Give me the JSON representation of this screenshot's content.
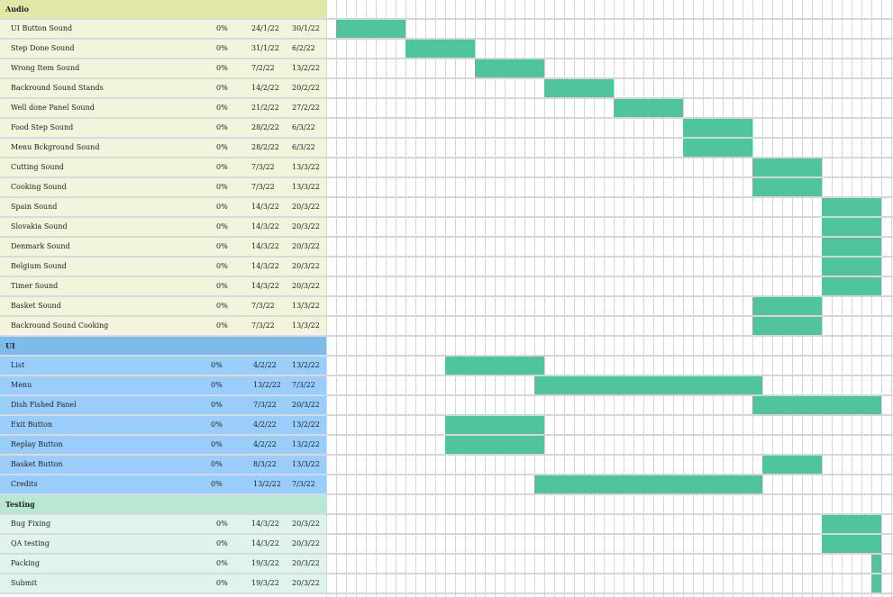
{
  "colors": {
    "audio_header": "#e1e8a6",
    "audio_row": "#f2f4dc",
    "ui_header": "#7dbcea",
    "ui_row": "#99cdfb",
    "testing_header": "#b8e8d4",
    "testing_row": "#dff4ec",
    "bar": "#50c49d",
    "grid_line": "#d6d6d6"
  },
  "groups": [
    {
      "key": "audio",
      "title": "Audio",
      "tasks": [
        {
          "name": "UI Button Sound",
          "progress": "0%",
          "start": "24/1/22",
          "end": "30/1/22",
          "bar_start": 1,
          "bar_end": 8
        },
        {
          "name": "Step Done Sound",
          "progress": "0%",
          "start": "31/1/22",
          "end": "6/2/22",
          "bar_start": 8,
          "bar_end": 15
        },
        {
          "name": "Wrong Item Sound",
          "progress": "0%",
          "start": "7/2/22",
          "end": "13/2/22",
          "bar_start": 15,
          "bar_end": 22
        },
        {
          "name": "Backround Sound Stands",
          "progress": "0%",
          "start": "14/2/22",
          "end": "20/2/22",
          "bar_start": 22,
          "bar_end": 29
        },
        {
          "name": "Well done Panel Sound",
          "progress": "0%",
          "start": "21/2/22",
          "end": "27/2/22",
          "bar_start": 29,
          "bar_end": 36
        },
        {
          "name": "Food Step Sound",
          "progress": "0%",
          "start": "28/2/22",
          "end": "6/3/22",
          "bar_start": 36,
          "bar_end": 43
        },
        {
          "name": "Menu Bckground Sound",
          "progress": "0%",
          "start": "28/2/22",
          "end": "6/3/22",
          "bar_start": 36,
          "bar_end": 43
        },
        {
          "name": "Cutting Sound",
          "progress": "0%",
          "start": "7/3/22",
          "end": "13/3/22",
          "bar_start": 43,
          "bar_end": 50
        },
        {
          "name": "Cooking Sound",
          "progress": "0%",
          "start": "7/3/22",
          "end": "13/3/22",
          "bar_start": 43,
          "bar_end": 50
        },
        {
          "name": "Spain Sound",
          "progress": "0%",
          "start": "14/3/22",
          "end": "20/3/22",
          "bar_start": 50,
          "bar_end": 56
        },
        {
          "name": "Slovakia Sound",
          "progress": "0%",
          "start": "14/3/22",
          "end": "20/3/22",
          "bar_start": 50,
          "bar_end": 56
        },
        {
          "name": "Denmark Sound",
          "progress": "0%",
          "start": "14/3/22",
          "end": "20/3/22",
          "bar_start": 50,
          "bar_end": 56
        },
        {
          "name": "Belgium Sound",
          "progress": "0%",
          "start": "14/3/22",
          "end": "20/3/22",
          "bar_start": 50,
          "bar_end": 56
        },
        {
          "name": "Timer Sound",
          "progress": "0%",
          "start": "14/3/22",
          "end": "20/3/22",
          "bar_start": 50,
          "bar_end": 56
        },
        {
          "name": "Basket Sound",
          "progress": "0%",
          "start": "7/3/22",
          "end": "13/3/22",
          "bar_start": 43,
          "bar_end": 50
        },
        {
          "name": "Backround Sound Cooking",
          "progress": "0%",
          "start": "7/3/22",
          "end": "13/3/22",
          "bar_start": 43,
          "bar_end": 50
        }
      ]
    },
    {
      "key": "ui",
      "title": "UI",
      "tasks": [
        {
          "name": "List",
          "progress": "0%",
          "start": "4/2/22",
          "end": "13/2/22",
          "bar_start": 12,
          "bar_end": 22
        },
        {
          "name": "Menu",
          "progress": "0%",
          "start": "13/2/22",
          "end": "7/3/22",
          "bar_start": 21,
          "bar_end": 44
        },
        {
          "name": "Dish Fished Panel",
          "progress": "0%",
          "start": "7/3/22",
          "end": "20/3/22",
          "bar_start": 43,
          "bar_end": 56
        },
        {
          "name": "Exit Button",
          "progress": "0%",
          "start": "4/2/22",
          "end": "13/2/22",
          "bar_start": 12,
          "bar_end": 22
        },
        {
          "name": "Replay Button",
          "progress": "0%",
          "start": "4/2/22",
          "end": "13/2/22",
          "bar_start": 12,
          "bar_end": 22
        },
        {
          "name": "Basket Button",
          "progress": "0%",
          "start": "8/3/22",
          "end": "13/3/22",
          "bar_start": 44,
          "bar_end": 50
        },
        {
          "name": "Credits",
          "progress": "0%",
          "start": "13/2/22",
          "end": "7/3/22",
          "bar_start": 21,
          "bar_end": 44
        }
      ]
    },
    {
      "key": "testing",
      "title": "Testing",
      "tasks": [
        {
          "name": "Bug Fixing",
          "progress": "0%",
          "start": "14/3/22",
          "end": "20/3/22",
          "bar_start": 50,
          "bar_end": 56
        },
        {
          "name": "QA testing",
          "progress": "0%",
          "start": "14/3/22",
          "end": "20/3/22",
          "bar_start": 50,
          "bar_end": 56
        },
        {
          "name": "Packing",
          "progress": "0%",
          "start": "19/3/22",
          "end": "20/3/22",
          "bar_start": 55,
          "bar_end": 56
        },
        {
          "name": "Submit",
          "progress": "0%",
          "start": "19/3/22",
          "end": "20/3/22",
          "bar_start": 55,
          "bar_end": 56
        }
      ]
    }
  ]
}
